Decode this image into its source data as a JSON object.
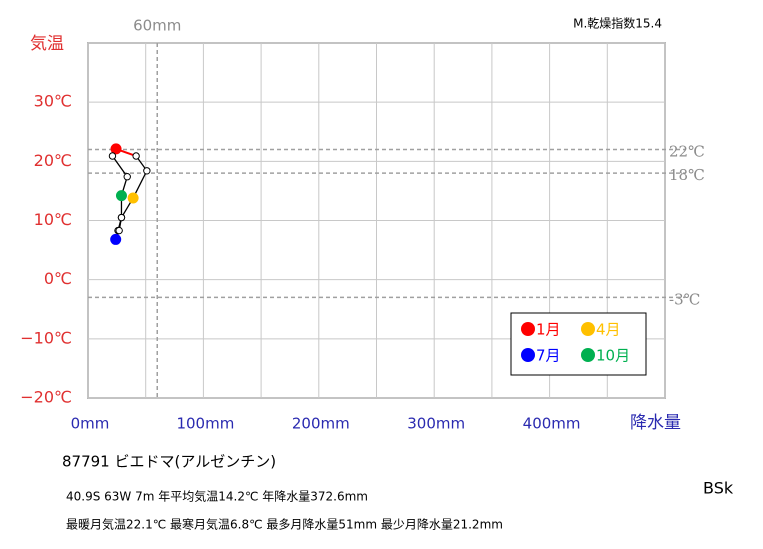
{
  "chart_data": {
    "type": "climograph",
    "index_label": "M.乾燥指数15.4",
    "x_label": "降水量",
    "y_label": "気温",
    "xlim": [
      0,
      500
    ],
    "ylim": [
      -20,
      40
    ],
    "xticks": [
      {
        "value": 0,
        "label": "0mm"
      },
      {
        "value": 100,
        "label": "100mm"
      },
      {
        "value": 200,
        "label": "200mm"
      },
      {
        "value": 300,
        "label": "300mm"
      },
      {
        "value": 400,
        "label": "400mm"
      }
    ],
    "xminor": [
      50,
      150,
      250,
      350,
      450,
      500
    ],
    "yticks": [
      {
        "value": -20,
        "label": "−20℃"
      },
      {
        "value": -10,
        "label": "−10℃"
      },
      {
        "value": 0,
        "label": "0℃"
      },
      {
        "value": 10,
        "label": "10℃"
      },
      {
        "value": 20,
        "label": "20℃"
      },
      {
        "value": 30,
        "label": "30℃"
      },
      {
        "value": 40,
        "label": null
      }
    ],
    "grid": true,
    "reference_lines": [
      {
        "axis": "x",
        "value": 60,
        "label": "60mm"
      },
      {
        "axis": "y",
        "value": 22,
        "label": "22℃"
      },
      {
        "axis": "y",
        "value": 18,
        "label": "18℃"
      },
      {
        "axis": "y",
        "value": -3,
        "label": "-3℃"
      }
    ],
    "categories": [
      "1月",
      null,
      null,
      "4月",
      null,
      null,
      "7月",
      null,
      null,
      "10月",
      null,
      null
    ],
    "colors": [
      "#ff0000",
      null,
      null,
      "#ffc000",
      null,
      null,
      "#0000ff",
      null,
      null,
      "#00b050",
      null,
      null
    ],
    "x": [
      24.3,
      41.7,
      51,
      39.1,
      29,
      26,
      24,
      27,
      29,
      29,
      34,
      21.2
    ],
    "values": [
      22.1,
      20.9,
      18.4,
      13.8,
      10.5,
      8.3,
      6.8,
      8.3,
      10.5,
      14.2,
      17.4,
      20.9
    ],
    "legend": "lower right",
    "station": "87791  ビエドマ(アルゼンチン)",
    "info_lines": [
      "40.9S  63W 7m  年平均気温14.2℃ 年降水量372.6mm",
      "最暖月気温22.1℃ 最寒月気温6.8℃ 最多月降水量51mm 最少月降水量21.2mm"
    ],
    "climate_class": "BSk"
  }
}
